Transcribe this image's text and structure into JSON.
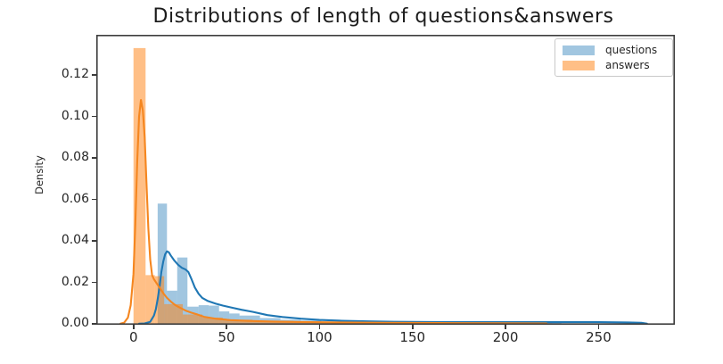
{
  "figure": {
    "background": "#ffffff",
    "frame_color": "#3c3c3c",
    "text_color": "#262626"
  },
  "chart_data": {
    "type": "histogram+kde",
    "title": "Distributions of length of questions&answers",
    "xlabel": "",
    "ylabel": "Density",
    "xlim": [
      -20,
      291
    ],
    "ylim": [
      0,
      0.1394
    ],
    "grid": false,
    "legend_position": "upper right",
    "xticks": [
      {
        "v": 0,
        "label": "0"
      },
      {
        "v": 50,
        "label": "50"
      },
      {
        "v": 100,
        "label": "100"
      },
      {
        "v": 150,
        "label": "150"
      },
      {
        "v": 200,
        "label": "200"
      },
      {
        "v": 250,
        "label": "250"
      }
    ],
    "yticks": [
      {
        "v": 0.0,
        "label": "0.00"
      },
      {
        "v": 0.02,
        "label": "0.02"
      },
      {
        "v": 0.04,
        "label": "0.04"
      },
      {
        "v": 0.06,
        "label": "0.06"
      },
      {
        "v": 0.08,
        "label": "0.08"
      },
      {
        "v": 0.1,
        "label": "0.10"
      },
      {
        "v": 0.12,
        "label": "0.12"
      }
    ],
    "series": [
      {
        "name": "questions",
        "line_color": "#1f77b4",
        "fill_color": "rgba(31,119,180,0.42)",
        "hist_bars": [
          [
            13,
            18,
            0.058
          ],
          [
            18,
            23.5,
            0.016
          ],
          [
            23.5,
            29,
            0.032
          ],
          [
            29,
            35,
            0.0083
          ],
          [
            35,
            40.5,
            0.009
          ],
          [
            40.5,
            46,
            0.0088
          ],
          [
            46,
            51.5,
            0.006
          ],
          [
            51.5,
            57,
            0.005
          ],
          [
            57,
            68,
            0.004
          ],
          [
            68,
            79,
            0.0028
          ],
          [
            79,
            90,
            0.002
          ],
          [
            90,
            101,
            0.0016
          ],
          [
            101,
            118,
            0.0012
          ],
          [
            118,
            140,
            0.0009
          ],
          [
            140,
            170,
            0.0006
          ],
          [
            170,
            230,
            0.0004
          ]
        ],
        "kde": [
          [
            3,
            0.0001
          ],
          [
            6,
            0.0002
          ],
          [
            9,
            0.001
          ],
          [
            11,
            0.004
          ],
          [
            12,
            0.007
          ],
          [
            13,
            0.012
          ],
          [
            14,
            0.018
          ],
          [
            15,
            0.025
          ],
          [
            16,
            0.03
          ],
          [
            17,
            0.0335
          ],
          [
            18,
            0.035
          ],
          [
            19,
            0.0345
          ],
          [
            20,
            0.033
          ],
          [
            22,
            0.0305
          ],
          [
            24,
            0.0285
          ],
          [
            26,
            0.027
          ],
          [
            28,
            0.0262
          ],
          [
            29.5,
            0.025
          ],
          [
            31,
            0.022
          ],
          [
            33,
            0.0175
          ],
          [
            35,
            0.0145
          ],
          [
            37,
            0.0125
          ],
          [
            40,
            0.011
          ],
          [
            44,
            0.0098
          ],
          [
            48,
            0.0088
          ],
          [
            53,
            0.0078
          ],
          [
            58,
            0.0068
          ],
          [
            64,
            0.0058
          ],
          [
            72,
            0.0042
          ],
          [
            80,
            0.0033
          ],
          [
            90,
            0.0025
          ],
          [
            100,
            0.0019
          ],
          [
            112,
            0.0015
          ],
          [
            126,
            0.0012
          ],
          [
            140,
            0.001
          ],
          [
            158,
            0.0009
          ],
          [
            180,
            0.0008
          ],
          [
            200,
            0.0008
          ],
          [
            225,
            0.0008
          ],
          [
            250,
            0.0008
          ],
          [
            266,
            0.0007
          ],
          [
            273,
            0.0005
          ],
          [
            276,
            0.0001
          ]
        ]
      },
      {
        "name": "answers",
        "line_color": "#f5861f",
        "fill_color": "rgba(255,127,14,0.5)",
        "hist_bars": [
          [
            0,
            6.5,
            0.133
          ],
          [
            6.5,
            11.5,
            0.0235
          ],
          [
            11.5,
            16.5,
            0.023
          ],
          [
            16.5,
            26.5,
            0.0095
          ],
          [
            26.5,
            37,
            0.0045
          ],
          [
            37,
            48,
            0.003
          ],
          [
            48,
            64,
            0.002
          ],
          [
            64,
            86,
            0.0014
          ],
          [
            86,
            120,
            0.0009
          ],
          [
            120,
            160,
            0.0005
          ],
          [
            160,
            225,
            0.0003
          ]
        ],
        "kde": [
          [
            -7,
            0.0001
          ],
          [
            -5,
            0.0006
          ],
          [
            -3,
            0.003
          ],
          [
            -1.5,
            0.009
          ],
          [
            0,
            0.024
          ],
          [
            1,
            0.048
          ],
          [
            2,
            0.078
          ],
          [
            3,
            0.1
          ],
          [
            4,
            0.108
          ],
          [
            5,
            0.103
          ],
          [
            6,
            0.09
          ],
          [
            7,
            0.068
          ],
          [
            8,
            0.046
          ],
          [
            9,
            0.031
          ],
          [
            10,
            0.0235
          ],
          [
            11,
            0.0215
          ],
          [
            12.5,
            0.0195
          ],
          [
            14,
            0.0175
          ],
          [
            16,
            0.0148
          ],
          [
            18,
            0.0125
          ],
          [
            20,
            0.0108
          ],
          [
            22.5,
            0.009
          ],
          [
            25,
            0.0078
          ],
          [
            28,
            0.0064
          ],
          [
            31,
            0.0054
          ],
          [
            34,
            0.0046
          ],
          [
            38,
            0.0034
          ],
          [
            44,
            0.0025
          ],
          [
            52,
            0.0018
          ],
          [
            62,
            0.0014
          ],
          [
            75,
            0.0011
          ],
          [
            90,
            0.0009
          ],
          [
            110,
            0.0007
          ],
          [
            135,
            0.0005
          ],
          [
            165,
            0.0004
          ],
          [
            195,
            0.0003
          ],
          [
            222,
            0.0002
          ]
        ]
      }
    ],
    "legend": [
      {
        "label": "questions"
      },
      {
        "label": "answers"
      }
    ]
  }
}
